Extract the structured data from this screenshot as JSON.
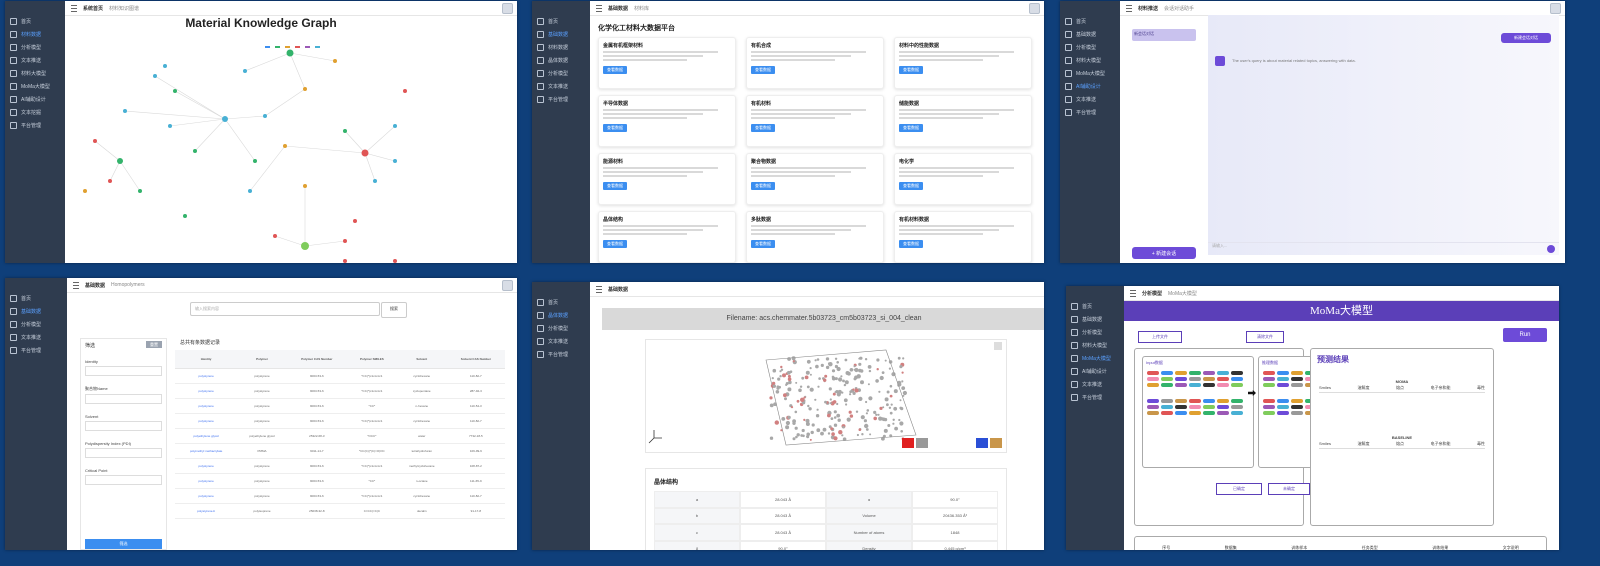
{
  "panel1": {
    "topbar": {
      "bc1": "系统首页",
      "bc2": "材料知识图谱"
    },
    "sidebar": [
      "首页",
      "材料数据",
      "分析模型",
      "文本推送",
      "材料大模型",
      "MoMa大模型",
      "AI辅助设计",
      "文本挖掘",
      "平台管理"
    ],
    "title": "Material Knowledge Graph"
  },
  "panel2": {
    "topbar": {
      "bc1": "基础数据",
      "bc2": "材料库"
    },
    "sidebar": [
      "首页",
      "基础数据",
      "材料数据",
      "晶体数据",
      "分析模型",
      "文本推送",
      "平台管理"
    ],
    "heading": "化学化工材料大数据平台",
    "card_button": "查看数据",
    "cards": [
      "金属有机框架材料",
      "有机合成",
      "材料中的性能数据",
      "半导体数据",
      "有机材料",
      "储能数据",
      "能源材料",
      "聚合物数据",
      "电化学",
      "晶体结构",
      "多肽数据",
      "有机材料数据"
    ]
  },
  "panel3": {
    "topbar": {
      "bc1": "材料推送",
      "bc2": "会话对话助手"
    },
    "sidebar": [
      "首页",
      "基础数据",
      "分析模型",
      "材料大模型",
      "MoMa大模型",
      "AI辅助设计",
      "文本推送",
      "平台管理"
    ],
    "conversation": "新会话对话",
    "new_conversation": "+ 新建会话",
    "top_button": "新建会话对话",
    "bot_message": "The user's query is about material related topics, answering with data.",
    "input_placeholder": "请输入..."
  },
  "panel4": {
    "topbar": {
      "bc1": "基础数据",
      "bc2": "Homopolymers"
    },
    "sidebar": [
      "首页",
      "基础数据",
      "分析模型",
      "文本推送",
      "平台管理"
    ],
    "search_placeholder": "输入搜索内容",
    "search_button": "搜索",
    "filter_title": "筛选",
    "reset": "重置",
    "filters": [
      "Identity",
      "聚合物Name",
      "Solvent",
      "Polydispersity Index (PDI)",
      "Critical Point"
    ],
    "apply": "筛选",
    "table_title": "总共有条数据记录",
    "columns": [
      "Identity",
      "Polymer",
      "Polymer CAS Number",
      "Polymer SMILES",
      "Solvent",
      "Solvent CAS Number"
    ],
    "rows": [
      [
        "polystyrene",
        "polystyrene",
        "9003-53-6",
        "*CC(*)c1ccccc1",
        "cyclohexane",
        "110-82-7"
      ],
      [
        "polystyrene",
        "polystyrene",
        "9003-53-6",
        "*CC(*)c1ccccc1",
        "cyclopentane",
        "287-92-3"
      ],
      [
        "polystyrene",
        "polystyrene",
        "9003-53-6",
        "*CC*",
        "n-hexane",
        "110-54-3"
      ],
      [
        "polystyrene",
        "polystyrene",
        "9003-53-6",
        "*CC(*)c1ccccc1",
        "cyclohexane",
        "110-82-7"
      ],
      [
        "polyethylene glycol",
        "polyethylene glycol",
        "25322-68-3",
        "*OCC*",
        "water",
        "7732-18-5"
      ],
      [
        "polymethyl methacrylate",
        "PMMA",
        "9011-14-7",
        "*CC(C)(*)C(=O)OC",
        "tetrahydrofuran",
        "109-99-9"
      ],
      [
        "polystyrene",
        "polystyrene",
        "9003-53-6",
        "*CC(*)c1ccccc1",
        "methylcyclohexane",
        "108-87-2"
      ],
      [
        "polystyrene",
        "polystyrene",
        "9003-53-6",
        "*CC*",
        "n-octane",
        "111-65-9"
      ],
      [
        "polystyrene",
        "polystyrene",
        "9003-53-6",
        "*CC(*)c1ccccc1",
        "cyclohexane",
        "110-82-7"
      ],
      [
        "polystyrene-b",
        "polyisoprene",
        "25038-32-8",
        "C=CC(=C)C",
        "decalin",
        "91-17-8"
      ]
    ]
  },
  "panel5": {
    "topbar": {
      "bc1": "基础数据"
    },
    "sidebar": [
      "首页",
      "晶体数据",
      "分析模型",
      "文本推送",
      "平台管理"
    ],
    "filename": "Filename: acs.chemmater.5b03723_cm5b03723_si_004_clean",
    "structure_title": "晶体结构",
    "props": [
      [
        "a",
        "28.043 Å",
        "α",
        "90.0°"
      ],
      [
        "b",
        "28.043 Å",
        "Volume",
        "20436.353 Å³"
      ],
      [
        "c",
        "28.043 Å",
        "Number of atoms",
        "1848"
      ],
      [
        "β",
        "90.0°",
        "Density",
        "0.445 g/cm³"
      ]
    ]
  },
  "panel6": {
    "topbar": {
      "bc1": "分析模型",
      "bc2": "MoMa大模型"
    },
    "sidebar": [
      "首页",
      "基础数据",
      "分析模型",
      "材料大模型",
      "MoMa大模型",
      "AI辅助设计",
      "文本推送",
      "平台管理"
    ],
    "banner": "MoMa大模型",
    "upload1": "上传文件",
    "upload2": "清除文件",
    "run": "Run",
    "input_title": "Input数据",
    "inf_title": "推理数据",
    "confirm1": "已确定",
    "confirm2": "未确定",
    "result_title": "预测结果",
    "result_model1": "MOMA",
    "result_model2": "BASELINE",
    "result_cols": [
      "Smiles",
      "溶解度",
      "熔点",
      "电子亲和能",
      "毒性"
    ],
    "bottom_cols": [
      "序号",
      "数据集",
      "训练样本",
      "任务类型",
      "训练结果",
      "文字说明"
    ]
  }
}
